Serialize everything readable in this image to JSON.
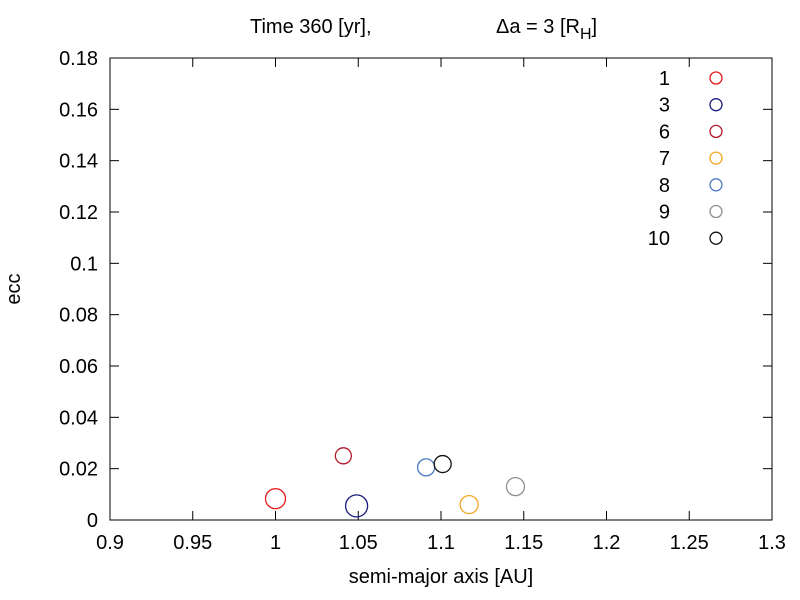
{
  "chart_data": {
    "type": "scatter",
    "title_left": "Time 360 [yr],",
    "title_right_main": "Δa = 3 [R",
    "title_right_sub": "H",
    "title_right_end": "]",
    "xlabel": "semi-major axis [AU]",
    "ylabel": "ecc",
    "xlim": [
      0.9,
      1.3
    ],
    "ylim": [
      0,
      0.18
    ],
    "xticks": [
      "0.9",
      "0.95",
      "1",
      "1.05",
      "1.1",
      "1.15",
      "1.2",
      "1.25",
      "1.3"
    ],
    "yticks": [
      "0",
      "0.02",
      "0.04",
      "0.06",
      "0.08",
      "0.1",
      "0.12",
      "0.14",
      "0.16",
      "0.18"
    ],
    "legend_position": "top-right",
    "grid": false,
    "marker": "open-circle",
    "series": [
      {
        "name": "1",
        "color": "#e41a1c",
        "x": [
          1.0
        ],
        "y": [
          0.0083
        ],
        "size": 10
      },
      {
        "name": "3",
        "color": "#1a1a80",
        "x": [
          1.049
        ],
        "y": [
          0.0055
        ],
        "size": 11
      },
      {
        "name": "6",
        "color": "#b2182b",
        "x": [
          1.041
        ],
        "y": [
          0.025
        ],
        "size": 8
      },
      {
        "name": "7",
        "color": "#f5a623",
        "x": [
          1.117
        ],
        "y": [
          0.006
        ],
        "size": 9
      },
      {
        "name": "8",
        "color": "#4a78c2",
        "x": [
          1.091
        ],
        "y": [
          0.0205
        ],
        "size": 8.5
      },
      {
        "name": "9",
        "color": "#909090",
        "x": [
          1.145
        ],
        "y": [
          0.013
        ],
        "size": 9
      },
      {
        "name": "10",
        "color": "#111111",
        "x": [
          1.101
        ],
        "y": [
          0.0218
        ],
        "size": 8.5
      }
    ]
  }
}
